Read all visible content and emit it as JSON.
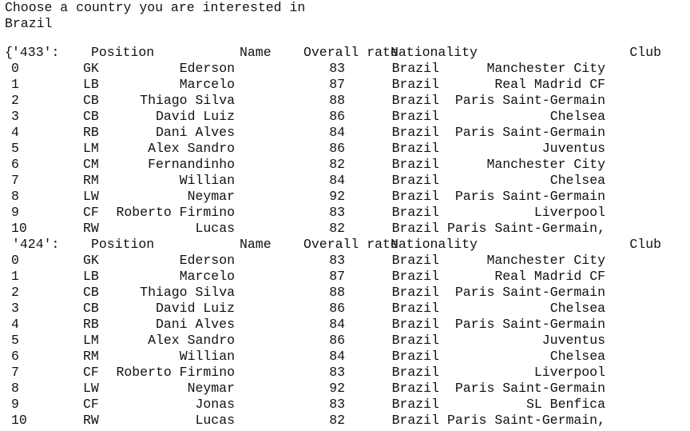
{
  "console": {
    "prompt": "Choose a country you are interested in",
    "input": "Brazil"
  },
  "output": {
    "open_prefix": "{",
    "headers": {
      "position": "Position",
      "name": "Name",
      "overall": "Overall rate",
      "nationality": "Nationality",
      "club": "Club"
    },
    "formations": [
      {
        "key": "'433':",
        "rows": [
          {
            "idx": "0",
            "pos": "GK",
            "name": "Ederson",
            "rate": "83",
            "nat": "Brazil",
            "club": "Manchester City"
          },
          {
            "idx": "1",
            "pos": "LB",
            "name": "Marcelo",
            "rate": "87",
            "nat": "Brazil",
            "club": "Real Madrid CF"
          },
          {
            "idx": "2",
            "pos": "CB",
            "name": "Thiago Silva",
            "rate": "88",
            "nat": "Brazil",
            "club": "Paris Saint-Germain"
          },
          {
            "idx": "3",
            "pos": "CB",
            "name": "David Luiz",
            "rate": "86",
            "nat": "Brazil",
            "club": "Chelsea"
          },
          {
            "idx": "4",
            "pos": "RB",
            "name": "Dani Alves",
            "rate": "84",
            "nat": "Brazil",
            "club": "Paris Saint-Germain"
          },
          {
            "idx": "5",
            "pos": "LM",
            "name": "Alex Sandro",
            "rate": "86",
            "nat": "Brazil",
            "club": "Juventus"
          },
          {
            "idx": "6",
            "pos": "CM",
            "name": "Fernandinho",
            "rate": "82",
            "nat": "Brazil",
            "club": "Manchester City"
          },
          {
            "idx": "7",
            "pos": "RM",
            "name": "Willian",
            "rate": "84",
            "nat": "Brazil",
            "club": "Chelsea"
          },
          {
            "idx": "8",
            "pos": "LW",
            "name": "Neymar",
            "rate": "92",
            "nat": "Brazil",
            "club": "Paris Saint-Germain"
          },
          {
            "idx": "9",
            "pos": "CF",
            "name": "Roberto Firmino",
            "rate": "83",
            "nat": "Brazil",
            "club": "Liverpool"
          },
          {
            "idx": "10",
            "pos": "RW",
            "name": "Lucas",
            "rate": "82",
            "nat": "Brazil",
            "club": "Paris Saint-Germain,"
          }
        ]
      },
      {
        "key": "'424':",
        "rows": [
          {
            "idx": "0",
            "pos": "GK",
            "name": "Ederson",
            "rate": "83",
            "nat": "Brazil",
            "club": "Manchester City"
          },
          {
            "idx": "1",
            "pos": "LB",
            "name": "Marcelo",
            "rate": "87",
            "nat": "Brazil",
            "club": "Real Madrid CF"
          },
          {
            "idx": "2",
            "pos": "CB",
            "name": "Thiago Silva",
            "rate": "88",
            "nat": "Brazil",
            "club": "Paris Saint-Germain"
          },
          {
            "idx": "3",
            "pos": "CB",
            "name": "David Luiz",
            "rate": "86",
            "nat": "Brazil",
            "club": "Chelsea"
          },
          {
            "idx": "4",
            "pos": "RB",
            "name": "Dani Alves",
            "rate": "84",
            "nat": "Brazil",
            "club": "Paris Saint-Germain"
          },
          {
            "idx": "5",
            "pos": "LM",
            "name": "Alex Sandro",
            "rate": "86",
            "nat": "Brazil",
            "club": "Juventus"
          },
          {
            "idx": "6",
            "pos": "RM",
            "name": "Willian",
            "rate": "84",
            "nat": "Brazil",
            "club": "Chelsea"
          },
          {
            "idx": "7",
            "pos": "CF",
            "name": "Roberto Firmino",
            "rate": "83",
            "nat": "Brazil",
            "club": "Liverpool"
          },
          {
            "idx": "8",
            "pos": "LW",
            "name": "Neymar",
            "rate": "92",
            "nat": "Brazil",
            "club": "Paris Saint-Germain"
          },
          {
            "idx": "9",
            "pos": "CF",
            "name": "Jonas",
            "rate": "83",
            "nat": "Brazil",
            "club": "SL Benfica"
          },
          {
            "idx": "10",
            "pos": "RW",
            "name": "Lucas",
            "rate": "82",
            "nat": "Brazil",
            "club": "Paris Saint-Germain,"
          }
        ]
      }
    ]
  }
}
